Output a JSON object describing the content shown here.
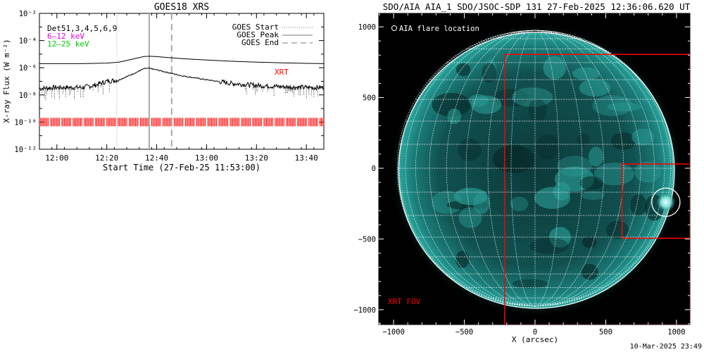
{
  "chart_data": [
    {
      "type": "line",
      "title": "GOES18 XRS",
      "xlabel": "Start Time (27-Feb-25 11:53:00)",
      "ylabel": "X-ray Flux (W m⁻²)",
      "y_scale": "log",
      "ylim": [
        1e-12,
        0.01
      ],
      "xlim": [
        "11:53",
        "13:47"
      ],
      "x_tick_labels": [
        "12:00",
        "12:20",
        "12:40",
        "13:00",
        "13:20",
        "13:40"
      ],
      "y_tick_labels": [
        "10⁻¹²",
        "10⁻¹⁰",
        "10⁻⁸",
        "10⁻⁶",
        "10⁻⁴",
        "10⁻²"
      ],
      "legend_left": {
        "placement": "top-left",
        "entries": [
          {
            "label": "Det51,3,4,5,6,9",
            "color": "#000000"
          },
          {
            "label": "6–12 keV",
            "color": "#e000e0"
          },
          {
            "label": "12–25 keV",
            "color": "#00c800"
          }
        ]
      },
      "legend_right": {
        "placement": "top-right",
        "entries": [
          {
            "label": "GOES Start",
            "style": "dotted"
          },
          {
            "label": "GOES Peak",
            "style": "solid"
          },
          {
            "label": "GOES End",
            "style": "dashed"
          }
        ]
      },
      "annotation": "XRT",
      "annotation_color": "#ff0000",
      "series": [
        {
          "name": "GOES long channel",
          "color": "#000000",
          "x": [
            "11:53",
            "12:00",
            "12:10",
            "12:20",
            "12:25",
            "12:30",
            "12:35",
            "12:37",
            "12:40",
            "12:45",
            "12:50",
            "13:00",
            "13:10",
            "13:20",
            "13:30",
            "13:40",
            "13:47"
          ],
          "y": [
            2e-06,
            2e-06,
            2e-06,
            2.2e-06,
            2.6e-06,
            4.2e-06,
            6.7e-06,
            7e-06,
            6.6e-06,
            5.5e-06,
            4.7e-06,
            3.7e-06,
            3e-06,
            2.6e-06,
            2.3e-06,
            2.1e-06,
            2e-06
          ]
        },
        {
          "name": "GOES short channel",
          "color": "#000000",
          "x": [
            "11:53",
            "12:00",
            "12:10",
            "12:15",
            "12:20",
            "12:25",
            "12:30",
            "12:35",
            "12:37",
            "12:40",
            "12:45",
            "12:50",
            "13:00",
            "13:10",
            "13:20",
            "13:30",
            "13:40",
            "13:47"
          ],
          "y": [
            3e-08,
            3.5e-08,
            3.5e-08,
            5e-08,
            1e-07,
            1.3e-07,
            3.2e-07,
            8.5e-07,
            9e-07,
            7e-07,
            4.2e-07,
            2.6e-07,
            1.3e-07,
            7e-08,
            5e-08,
            4e-08,
            3.5e-08,
            3.5e-08
          ]
        }
      ],
      "markers": [
        {
          "label": "GOES Start",
          "x": "12:24",
          "style": "dotted"
        },
        {
          "label": "GOES Peak",
          "x": "12:37",
          "style": "solid"
        },
        {
          "label": "GOES End",
          "x": "12:46",
          "style": "dashed"
        }
      ],
      "xrt_observations": {
        "color": "#ff0000",
        "flux_level": 1e-10,
        "start": "11:53",
        "end": "13:47",
        "cadence_min": 0.5
      }
    },
    {
      "type": "image",
      "title": "SDO/AIA AIA_1 SDO/JSOC-SDP 131 27-Feb-2025 12:36:06.620 UT",
      "xlabel": "X (arcsec)",
      "ylabel": "",
      "xlim": [
        -1105,
        1095
      ],
      "ylim": [
        -1105,
        1095
      ],
      "x_tick_labels": [
        "−1000",
        "−500",
        "0",
        "500",
        "1000"
      ],
      "y_tick_labels": [
        "−1000",
        "−500",
        "0",
        "500",
        "1000"
      ],
      "legend": {
        "label": "AIA flare location",
        "placement": "top-left",
        "marker": "circle"
      },
      "sun_radius_arcsec": 975,
      "grid_spacing_deg": 10,
      "flare_location_arcsec": [
        925,
        -240
      ],
      "flare_circle_radius_arcsec": 100,
      "xrt_fov_label": "XRT FOV",
      "boxes": [
        {
          "name": "XRT FOV",
          "x": [
            -215,
            1095
          ],
          "y": [
            -1105,
            805
          ],
          "color": "#ff0000"
        },
        {
          "name": "XRT inset",
          "x": [
            615,
            1095
          ],
          "y": [
            -495,
            30
          ],
          "color": "#ff0000"
        }
      ]
    }
  ],
  "footer": {
    "timestamp": "10-Mar-2025 23:49"
  }
}
